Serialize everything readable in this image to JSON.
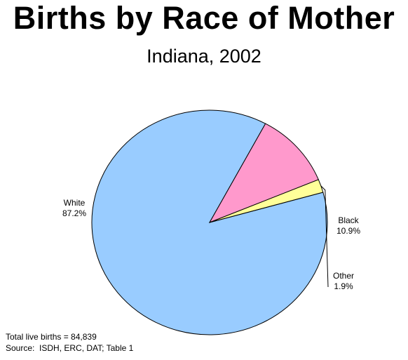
{
  "chart_data": {
    "type": "pie",
    "title": "Births by Race of Mother",
    "subtitle": "Indiana, 2002",
    "slices": [
      {
        "label": "White",
        "pct_label": "87.2%",
        "value": 87.2,
        "color": "#99ccff"
      },
      {
        "label": "Black",
        "pct_label": "10.9%",
        "value": 10.9,
        "color": "#ff99cc"
      },
      {
        "label": "Other",
        "pct_label": "1.9%",
        "value": 1.9,
        "color": "#ffff99"
      }
    ],
    "outline_color": "#000000"
  },
  "footnotes": {
    "total": "Total live births = 84,839",
    "source": "Source:  ISDH, ERC, DAT; Table 1"
  }
}
